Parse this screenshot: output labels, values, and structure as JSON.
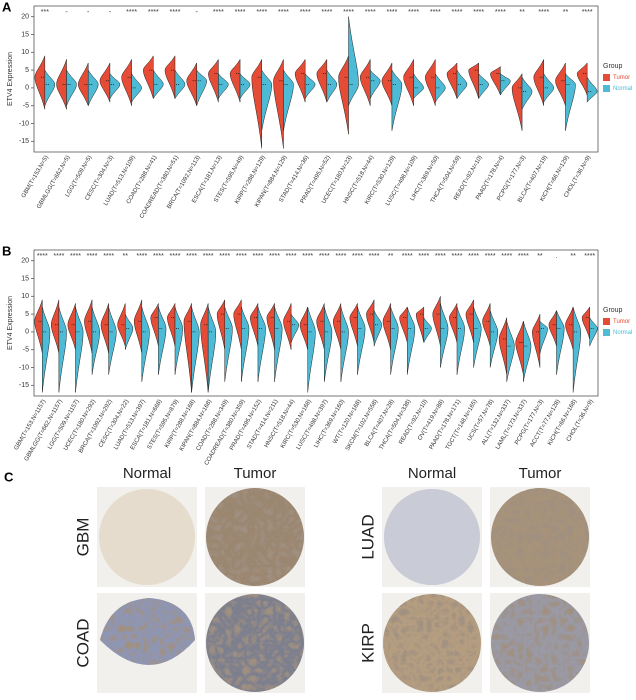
{
  "chart_data": [
    {
      "type": "violin",
      "panel_label": "A",
      "ylabel": "ETV4  Expression",
      "legend_title": "Group",
      "categories": [
        "GBM(T=153,N=5)",
        "GBMLGG(T=662,N=5)",
        "LGG(T=509,N=5)",
        "CESC(T=304,N=3)",
        "LUAD(T=513,N=109)",
        "COAD(T=288,N=41)",
        "COADREAD(T=380,N=51)",
        "BRCA(T=1092,N=113)",
        "ESCA(T=181,N=13)",
        "STES(T=595,N=49)",
        "KIRP(T=288,N=129)",
        "KIPAN(T=884,N=129)",
        "STAD(T=414,N=36)",
        "PRAD(T=495,N=52)",
        "UCEC(T=180,N=23)",
        "HNSC(T=518,N=44)",
        "KIRC(T=530,N=129)",
        "LUSC(T=498,N=109)",
        "LIHC(T=369,N=50)",
        "THCA(T=504,N=59)",
        "READ(T=92,N=10)",
        "PAAD(T=178,N=4)",
        "PCPG(T=177,N=3)",
        "BLCA(T=407,N=19)",
        "KICH(T=66,N=129)",
        "CHOL(T=36,N=9)"
      ],
      "significance": [
        "***",
        "-",
        "-",
        "-",
        "****",
        "****",
        "****",
        "-",
        "****",
        "****",
        "****",
        "****",
        "****",
        "****",
        "****",
        "****",
        "****",
        "****",
        "****",
        "****",
        "****",
        "****",
        "**",
        "****",
        "**",
        "****"
      ],
      "series": [
        {
          "name": "Tumor",
          "color": "#e64b35",
          "values": [
            3,
            1,
            1,
            2,
            3,
            5,
            5,
            2,
            4,
            4,
            3,
            2,
            4,
            4,
            3,
            3,
            2,
            3,
            3,
            4,
            5,
            4,
            0,
            3,
            2,
            4
          ],
          "low": [
            -6,
            -6,
            -5,
            -4,
            -5,
            -3,
            -3,
            -5,
            -4,
            -4,
            -17,
            -17,
            -4,
            -4,
            -13,
            -5,
            -5,
            -5,
            -5,
            -3,
            -3,
            -2,
            -12,
            -5,
            -5,
            -2
          ],
          "high": [
            9,
            8,
            7,
            7,
            8,
            9,
            9,
            7,
            8,
            8,
            8,
            8,
            8,
            8,
            9,
            8,
            7,
            8,
            8,
            7,
            7,
            6,
            4,
            8,
            7,
            7
          ]
        },
        {
          "name": "Normal",
          "color": "#4dbbd5",
          "values": [
            1,
            1,
            1,
            1,
            0,
            1,
            1,
            2,
            1,
            1,
            1,
            1,
            1,
            1,
            1,
            2,
            1,
            0,
            0,
            1,
            1,
            2,
            -1,
            0,
            1,
            -1
          ],
          "low": [
            -5,
            -5,
            -5,
            -3,
            -4,
            -3,
            -3,
            -5,
            -3,
            -3,
            -12,
            -12,
            -3,
            -4,
            -5,
            -3,
            -12,
            -3,
            -4,
            -3,
            -3,
            -2,
            -6,
            -4,
            -12,
            -4
          ],
          "high": [
            5,
            5,
            5,
            4,
            4,
            5,
            5,
            5,
            4,
            4,
            5,
            5,
            4,
            5,
            20,
            5,
            5,
            4,
            4,
            5,
            4,
            4,
            3,
            4,
            4,
            3
          ]
        }
      ],
      "ylim": [
        -18,
        23
      ],
      "yticks": [
        -15,
        -10,
        -5,
        0,
        5,
        10,
        15,
        20
      ]
    },
    {
      "type": "violin",
      "panel_label": "B",
      "ylabel": "ETV4  Expression",
      "legend_title": "Group",
      "categories": [
        "GBM(T=153,N=1157)",
        "GBMLGG(T=662,N=1157)",
        "LGG(T=509,N=1157)",
        "UCEC(T=180,N=292)",
        "BRCA(T=1092,N=292)",
        "CESC(T=304,N=22)",
        "LUAD(T=513,N=397)",
        "ESCA(T=181,N=668)",
        "STES(T=595,N=879)",
        "KIRP(T=288,N=168)",
        "KIPAN(T=884,N=168)",
        "COAD(T=288,N=349)",
        "COADREAD(T=380,N=359)",
        "PRAD(T=495,N=152)",
        "STAD(T=414,N=211)",
        "HNSC(T=518,N=44)",
        "KIRC(T=530,N=168)",
        "LUSC(T=498,N=397)",
        "LIHC(T=369,N=160)",
        "WT(T=120,N=168)",
        "SKCM(T=102,N=558)",
        "BLCA(T=407,N=28)",
        "THCA(T=504,N=338)",
        "READ(T=92,N=10)",
        "OV(T=419,N=88)",
        "PAAD(T=178,N=171)",
        "TGCT(T=148,N=165)",
        "UCS(T=57,N=78)",
        "ALL(T=132,N=337)",
        "LAML(T=173,N=337)",
        "PCPG(T=177,N=3)",
        "ACCT(T=77,N=128)",
        "KICH(T=66,N=168)",
        "CHOL(T=36,N=9)"
      ],
      "significance": [
        "****",
        "****",
        "****",
        "****",
        "****",
        "**",
        "****",
        "****",
        "****",
        "****",
        "****",
        "****",
        "****",
        "****",
        "****",
        "****",
        "****",
        "****",
        "****",
        "****",
        "****",
        "**",
        "****",
        "****",
        "****",
        "****",
        "****",
        "****",
        "****",
        "****",
        "**",
        ".",
        "**",
        "****"
      ],
      "series": [
        {
          "name": "Tumor",
          "color": "#e64b35",
          "values": [
            3,
            2,
            2,
            3,
            2,
            2,
            3,
            4,
            4,
            3,
            2,
            5,
            5,
            4,
            4,
            3,
            2,
            3,
            3,
            4,
            5,
            3,
            4,
            5,
            5,
            4,
            5,
            3,
            -2,
            -3,
            0,
            2,
            2,
            4
          ],
          "low": [
            -6,
            -6,
            -5,
            -6,
            -6,
            -4,
            -6,
            -4,
            -4,
            -17,
            -17,
            -5,
            -5,
            -4,
            -5,
            -5,
            -5,
            -5,
            -5,
            -4,
            -3,
            -5,
            -3,
            -3,
            -4,
            -3,
            -3,
            -4,
            -12,
            -12,
            -10,
            -4,
            -5,
            -2
          ],
          "high": [
            9,
            9,
            8,
            9,
            8,
            8,
            9,
            8,
            8,
            8,
            8,
            9,
            9,
            8,
            8,
            8,
            7,
            8,
            8,
            8,
            9,
            8,
            7,
            7,
            10,
            8,
            9,
            8,
            4,
            3,
            5,
            6,
            7,
            7
          ]
        },
        {
          "name": "Normal",
          "color": "#4dbbd5",
          "values": [
            0,
            0,
            0,
            0,
            0,
            1,
            0,
            1,
            1,
            0,
            0,
            1,
            1,
            1,
            1,
            2,
            0,
            0,
            0,
            1,
            2,
            1,
            1,
            1,
            1,
            1,
            1,
            0,
            -4,
            -4,
            1,
            1,
            0,
            1
          ],
          "low": [
            -17,
            -17,
            -17,
            -12,
            -12,
            -5,
            -14,
            -12,
            -12,
            -17,
            -17,
            -14,
            -14,
            -14,
            -14,
            -3,
            -17,
            -14,
            -14,
            -12,
            -4,
            -12,
            -12,
            -3,
            -10,
            -12,
            -10,
            -10,
            -14,
            -14,
            -6,
            -12,
            -17,
            -4
          ],
          "high": [
            7,
            7,
            7,
            7,
            7,
            5,
            7,
            7,
            7,
            7,
            7,
            7,
            7,
            7,
            7,
            5,
            7,
            7,
            7,
            7,
            6,
            7,
            7,
            4,
            8,
            7,
            7,
            6,
            3,
            3,
            3,
            6,
            7,
            4
          ]
        }
      ],
      "ylim": [
        -18,
        23
      ],
      "yticks": [
        -15,
        -10,
        -5,
        0,
        5,
        10,
        15,
        20
      ]
    }
  ],
  "panel_c": {
    "panel_label": "C",
    "left": {
      "columns": [
        "Normal",
        "Tumor"
      ],
      "rows": [
        "GBM",
        "COAD"
      ]
    },
    "right": {
      "columns": [
        "Normal",
        "Tumor"
      ],
      "rows": [
        "LUAD",
        "KIRP"
      ]
    }
  }
}
